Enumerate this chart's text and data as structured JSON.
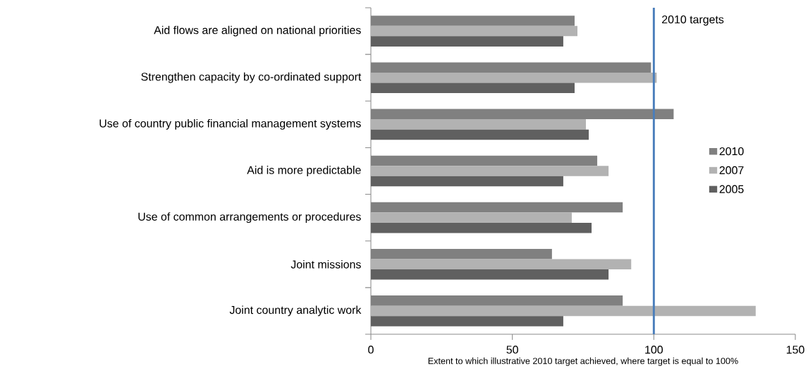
{
  "chart_data": {
    "type": "bar",
    "orientation": "horizontal",
    "xlabel": "Extent to which illustrative 2010 target achieved, where target is equal to 100%",
    "categories": [
      "Aid flows are aligned on national priorities",
      "Strengthen capacity by co-ordinated support",
      "Use of country public financial management systems",
      "Aid is more predictable",
      "Use of common arrangements or procedures",
      "Joint missions",
      "Joint country analytic work"
    ],
    "series": [
      {
        "name": "2010",
        "color": "#808080",
        "values": [
          72,
          99,
          107,
          80,
          89,
          64,
          89
        ]
      },
      {
        "name": "2007",
        "color": "#b2b2b2",
        "values": [
          73,
          101,
          76,
          84,
          71,
          92,
          136
        ]
      },
      {
        "name": "2005",
        "color": "#606060",
        "values": [
          68,
          72,
          77,
          68,
          78,
          84,
          68
        ]
      }
    ],
    "xlim": [
      0,
      150
    ],
    "xticks": [
      0,
      50,
      100,
      150
    ],
    "ref_lines": [
      {
        "axis": "x",
        "value": 100,
        "label": "2010 targets",
        "color": "#4a7ebb"
      }
    ],
    "legend": "right",
    "grid": false
  }
}
